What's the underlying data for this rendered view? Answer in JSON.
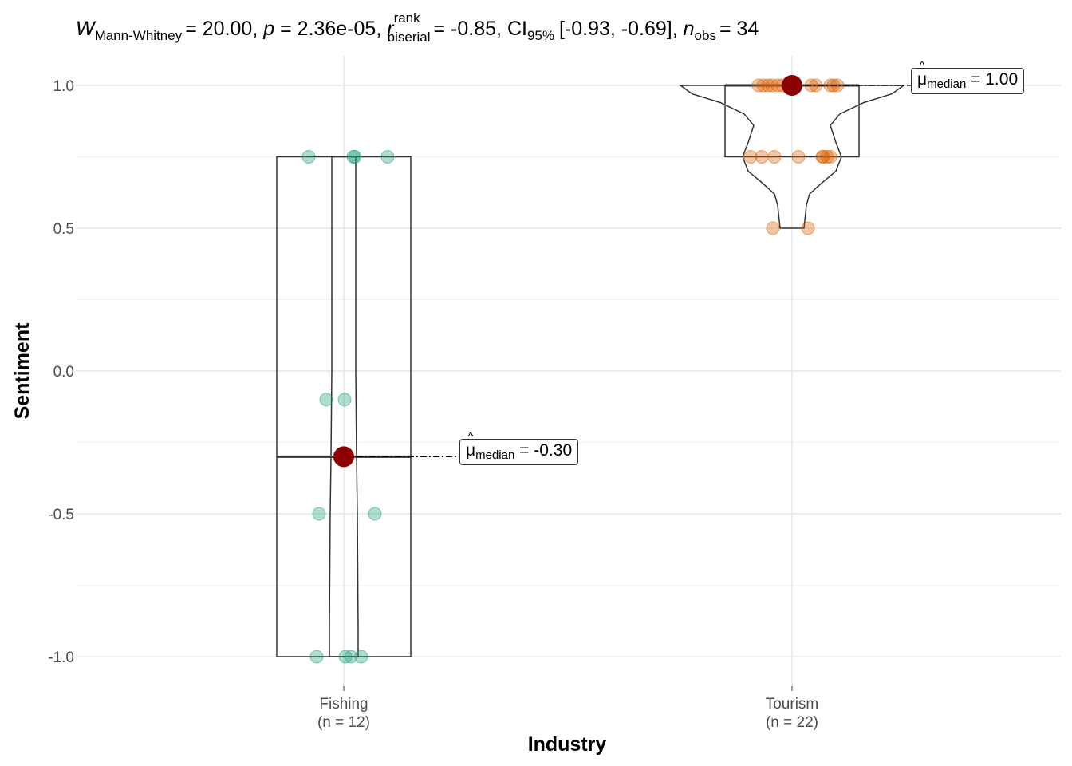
{
  "title": {
    "w_symbol": "W",
    "w_sub": "Mann-Whitney",
    "w_value": "= 20.00,",
    "p_symbol": "p",
    "p_value": "= 2.36e-05,",
    "r_symbol": "r",
    "r_sup": "rank",
    "r_sub": "biserial",
    "r_value": "= -0.85,",
    "ci_symbol": "CI",
    "ci_sub": "95%",
    "ci_value": "[-0.93, -0.69],",
    "n_symbol": "n",
    "n_sub": "obs",
    "n_value": "= 34"
  },
  "chart_data": {
    "type": "violin-box-scatter",
    "xlabel": "Industry",
    "ylabel": "Sentiment",
    "ylim": [
      -1.2,
      1.1
    ],
    "y_ticks": [
      "-1.0",
      "-0.5",
      "0.0",
      "0.5",
      "1.0"
    ],
    "grid": true,
    "categories": [
      {
        "name": "Fishing",
        "n_label": "(n = 12)",
        "color": "#1b9e77",
        "values": [
          0.75,
          0.75,
          0.75,
          0.75,
          -0.1,
          -0.1,
          -0.5,
          -0.5,
          -1.0,
          -1.0,
          -1.0,
          -1.0
        ],
        "box": {
          "q1": -1.0,
          "median": -0.3,
          "q3": 0.75
        },
        "median_label": {
          "symbol": "μ",
          "sub": "median",
          "value": "= -0.30"
        }
      },
      {
        "name": "Tourism",
        "n_label": "(n = 22)",
        "color": "#d95f02",
        "values": [
          1.0,
          1.0,
          1.0,
          1.0,
          1.0,
          1.0,
          1.0,
          1.0,
          1.0,
          1.0,
          1.0,
          1.0,
          0.75,
          0.75,
          0.75,
          0.75,
          0.75,
          0.75,
          0.75,
          0.75,
          0.5,
          0.5
        ],
        "box": {
          "q1": 0.75,
          "median": 1.0,
          "q3": 1.0
        },
        "median_label": {
          "symbol": "μ",
          "sub": "median",
          "value": "= 1.00"
        }
      }
    ],
    "median_point_color": "#8b0000"
  }
}
